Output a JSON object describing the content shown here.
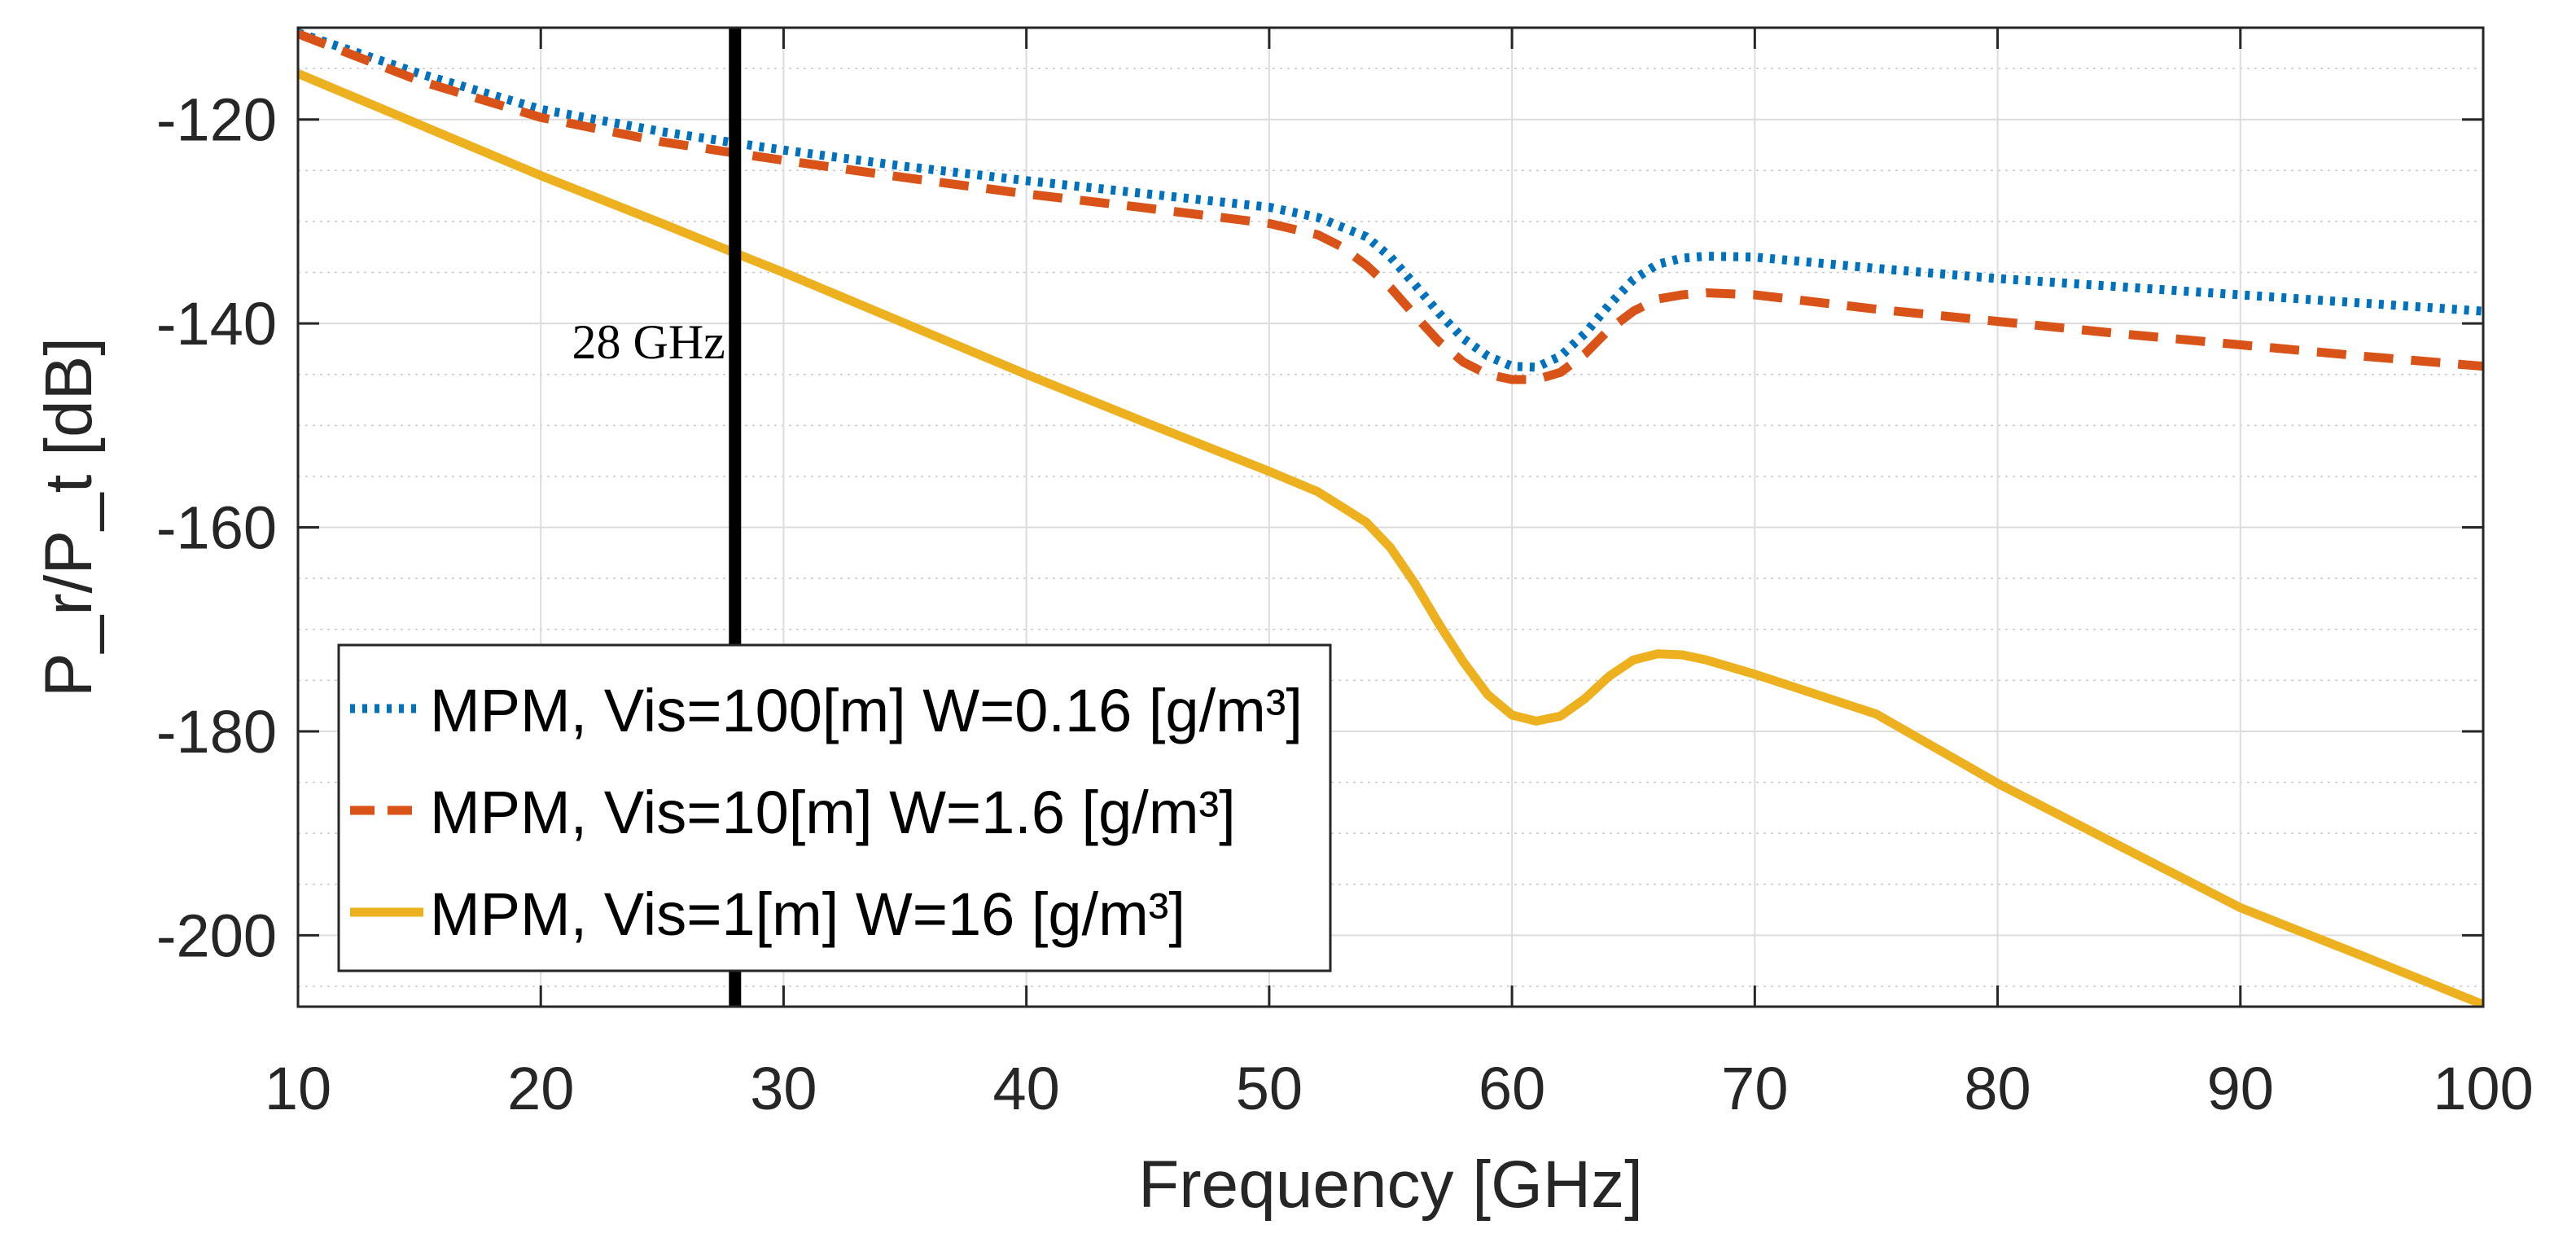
{
  "chart_data": {
    "type": "line",
    "title": "",
    "xlabel": "Frequency [GHz]",
    "ylabel": "P_r/P_t [dB]",
    "xlim": [
      10,
      100
    ],
    "ylim": [
      -207,
      -111
    ],
    "xticks": [
      10,
      20,
      30,
      40,
      50,
      60,
      70,
      80,
      90,
      100
    ],
    "yticks": [
      -120,
      -140,
      -160,
      -180,
      -200
    ],
    "ytick_labels": [
      "-120",
      "-140",
      "-160",
      "-180",
      "-200"
    ],
    "grid": true,
    "minor_grid": true,
    "legend_position": "bottom-left",
    "series": [
      {
        "name": "MPM, Vis=100[m] W=0.16 [g/m³]",
        "color": "#0072BD",
        "style": "dotted",
        "x": [
          10,
          15,
          20,
          25,
          28,
          30,
          35,
          40,
          45,
          50,
          52,
          54,
          55,
          56,
          57,
          58,
          59,
          60,
          61,
          62,
          63,
          64,
          65,
          66,
          67,
          68,
          70,
          75,
          80,
          85,
          90,
          95,
          100
        ],
        "y": [
          -111.5,
          -115.5,
          -119,
          -121.2,
          -122.3,
          -123,
          -124.6,
          -126,
          -127.3,
          -128.6,
          -129.6,
          -131.5,
          -133.5,
          -136.2,
          -139,
          -141.5,
          -143.2,
          -144.2,
          -144.3,
          -143.2,
          -141,
          -138.2,
          -135.7,
          -134.2,
          -133.6,
          -133.4,
          -133.5,
          -134.6,
          -135.6,
          -136.4,
          -137.2,
          -138,
          -138.8
        ]
      },
      {
        "name": "MPM, Vis=10[m] W=1.6 [g/m³]",
        "color": "#D95319",
        "style": "dashed",
        "x": [
          10,
          15,
          20,
          25,
          28,
          30,
          35,
          40,
          45,
          50,
          52,
          53,
          54,
          55,
          56,
          57,
          58,
          59,
          60,
          61,
          62,
          63,
          64,
          65,
          66,
          67,
          68,
          70,
          75,
          80,
          85,
          90,
          95,
          100
        ],
        "y": [
          -111.6,
          -116.2,
          -119.8,
          -122.2,
          -123.3,
          -124,
          -125.7,
          -127.3,
          -128.7,
          -130.2,
          -131.3,
          -132.5,
          -134.3,
          -136.5,
          -139.2,
          -141.8,
          -143.8,
          -145,
          -145.5,
          -145.5,
          -144.8,
          -143,
          -140.6,
          -138.8,
          -137.6,
          -137.2,
          -137,
          -137.2,
          -138.6,
          -139.8,
          -141,
          -142.1,
          -143.2,
          -144.2
        ]
      },
      {
        "name": "MPM, Vis=1[m] W=16 [g/m³]",
        "color": "#EDB120",
        "style": "solid",
        "x": [
          10,
          15,
          20,
          25,
          28,
          30,
          35,
          40,
          45,
          50,
          52,
          54,
          55,
          56,
          57,
          58,
          59,
          60,
          61,
          62,
          63,
          64,
          65,
          66,
          67,
          68,
          70,
          75,
          80,
          85,
          90,
          95,
          100
        ],
        "y": [
          -115.5,
          -120.5,
          -125.5,
          -130.2,
          -133.1,
          -135,
          -140,
          -145,
          -149.8,
          -154.5,
          -156.5,
          -159.5,
          -162,
          -165.5,
          -169.5,
          -173.2,
          -176.4,
          -178.4,
          -179,
          -178.5,
          -176.8,
          -174.6,
          -173,
          -172.4,
          -172.5,
          -173,
          -174.4,
          -178.3,
          -185.1,
          -191.2,
          -197.3,
          -202,
          -206.8
        ]
      }
    ],
    "annotations": [
      {
        "text": "28 GHz",
        "x": 28,
        "type": "vertical-line"
      }
    ]
  }
}
